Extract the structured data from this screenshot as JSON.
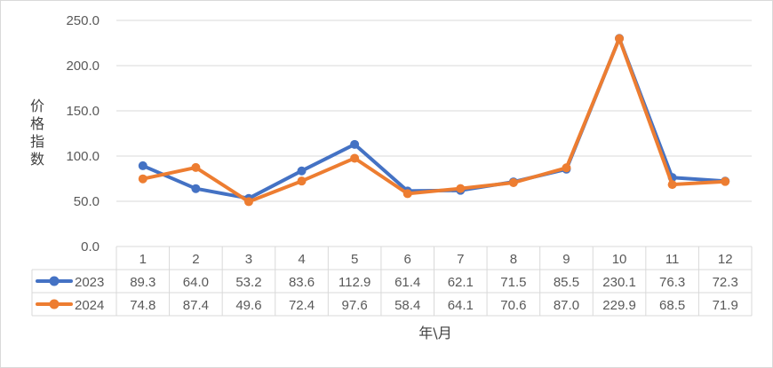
{
  "chart_data": {
    "type": "line",
    "ylabel": "价格指数",
    "xlabel": "年\\月",
    "ylim": [
      0,
      250
    ],
    "yticks": [
      "0.0",
      "50.0",
      "100.0",
      "150.0",
      "200.0",
      "250.0"
    ],
    "categories": [
      "1",
      "2",
      "3",
      "4",
      "5",
      "6",
      "7",
      "8",
      "9",
      "10",
      "11",
      "12"
    ],
    "grid": true,
    "legend": "data-table",
    "series": [
      {
        "name": "2023",
        "color": "#4472c4",
        "values": [
          89.3,
          64.0,
          53.2,
          83.6,
          112.9,
          61.4,
          62.1,
          71.5,
          85.5,
          230.1,
          76.3,
          72.3
        ],
        "labels": [
          "89.3",
          "64.0",
          "53.2",
          "83.6",
          "112.9",
          "61.4",
          "62.1",
          "71.5",
          "85.5",
          "230.1",
          "76.3",
          "72.3"
        ]
      },
      {
        "name": "2024",
        "color": "#ed7d31",
        "values": [
          74.8,
          87.4,
          49.6,
          72.4,
          97.6,
          58.4,
          64.1,
          70.6,
          87.0,
          229.9,
          68.5,
          71.9
        ],
        "labels": [
          "74.8",
          "87.4",
          "49.6",
          "72.4",
          "97.6",
          "58.4",
          "64.1",
          "70.6",
          "87.0",
          "229.9",
          "68.5",
          "71.9"
        ]
      }
    ]
  }
}
